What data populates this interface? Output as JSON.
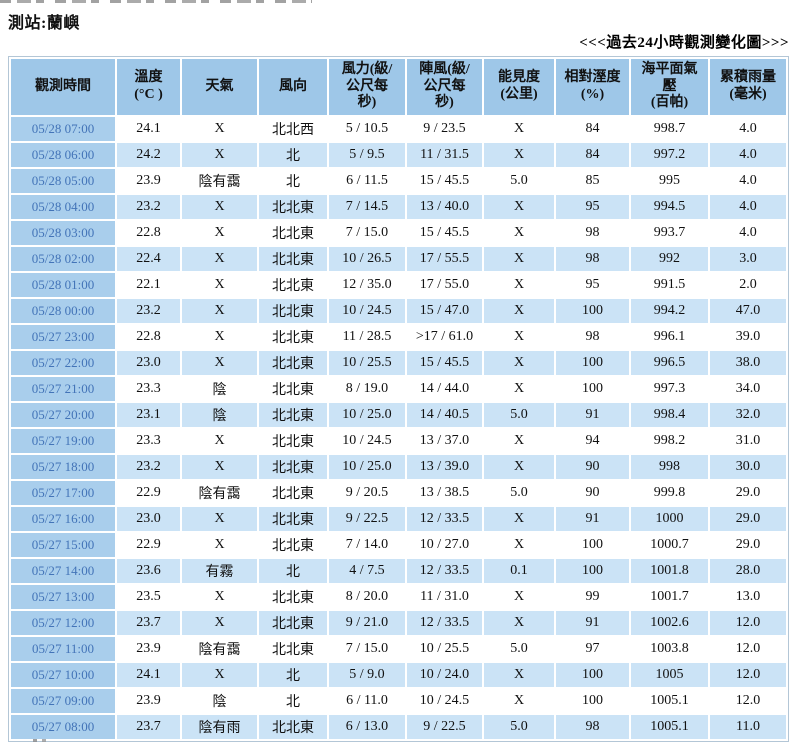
{
  "page": {
    "station_label": "測站:蘭嶼",
    "chart_link_label": "<<<過去24小時觀測變化圖>>>"
  },
  "colors": {
    "header-bg": "#9ec7e8",
    "time-bg": "#a9ceec",
    "row-alt-bg": "#cbe3f6",
    "row-bg": "#ffffff",
    "time-text": "#4374b8",
    "body-text": "#111111",
    "table-border": "#b3c6d6"
  },
  "table": {
    "headers": [
      "觀測時間",
      "溫度\n(°C )",
      "天氣",
      "風向",
      "風力(級/\n公尺每\n秒)",
      "陣風(級/\n公尺每\n秒)",
      "能見度\n(公里)",
      "相對溼度\n(%)",
      "海平面氣\n壓\n(百帕)",
      "累積雨量\n(毫米)"
    ],
    "rows": [
      [
        "05/28 07:00",
        "24.1",
        "X",
        "北北西",
        "5 / 10.5",
        "9 / 23.5",
        "X",
        "84",
        "998.7",
        "4.0"
      ],
      [
        "05/28 06:00",
        "24.2",
        "X",
        "北",
        "5 / 9.5",
        "11 / 31.5",
        "X",
        "84",
        "997.2",
        "4.0"
      ],
      [
        "05/28 05:00",
        "23.9",
        "陰有靄",
        "北",
        "6 / 11.5",
        "15 / 45.5",
        "5.0",
        "85",
        "995",
        "4.0"
      ],
      [
        "05/28 04:00",
        "23.2",
        "X",
        "北北東",
        "7 / 14.5",
        "13 / 40.0",
        "X",
        "95",
        "994.5",
        "4.0"
      ],
      [
        "05/28 03:00",
        "22.8",
        "X",
        "北北東",
        "7 / 15.0",
        "15 / 45.5",
        "X",
        "98",
        "993.7",
        "4.0"
      ],
      [
        "05/28 02:00",
        "22.4",
        "X",
        "北北東",
        "10 / 26.5",
        "17 / 55.5",
        "X",
        "98",
        "992",
        "3.0"
      ],
      [
        "05/28 01:00",
        "22.1",
        "X",
        "北北東",
        "12 / 35.0",
        "17 / 55.0",
        "X",
        "95",
        "991.5",
        "2.0"
      ],
      [
        "05/28 00:00",
        "23.2",
        "X",
        "北北東",
        "10 / 24.5",
        "15 / 47.0",
        "X",
        "100",
        "994.2",
        "47.0"
      ],
      [
        "05/27 23:00",
        "22.8",
        "X",
        "北北東",
        "11 / 28.5",
        ">17 / 61.0",
        "X",
        "98",
        "996.1",
        "39.0"
      ],
      [
        "05/27 22:00",
        "23.0",
        "X",
        "北北東",
        "10 / 25.5",
        "15 / 45.5",
        "X",
        "100",
        "996.5",
        "38.0"
      ],
      [
        "05/27 21:00",
        "23.3",
        "陰",
        "北北東",
        "8 / 19.0",
        "14 / 44.0",
        "X",
        "100",
        "997.3",
        "34.0"
      ],
      [
        "05/27 20:00",
        "23.1",
        "陰",
        "北北東",
        "10 / 25.0",
        "14 / 40.5",
        "5.0",
        "91",
        "998.4",
        "32.0"
      ],
      [
        "05/27 19:00",
        "23.3",
        "X",
        "北北東",
        "10 / 24.5",
        "13 / 37.0",
        "X",
        "94",
        "998.2",
        "31.0"
      ],
      [
        "05/27 18:00",
        "23.2",
        "X",
        "北北東",
        "10 / 25.0",
        "13 / 39.0",
        "X",
        "90",
        "998",
        "30.0"
      ],
      [
        "05/27 17:00",
        "22.9",
        "陰有靄",
        "北北東",
        "9 / 20.5",
        "13 / 38.5",
        "5.0",
        "90",
        "999.8",
        "29.0"
      ],
      [
        "05/27 16:00",
        "23.0",
        "X",
        "北北東",
        "9 / 22.5",
        "12 / 33.5",
        "X",
        "91",
        "1000",
        "29.0"
      ],
      [
        "05/27 15:00",
        "22.9",
        "X",
        "北北東",
        "7 / 14.0",
        "10 / 27.0",
        "X",
        "100",
        "1000.7",
        "29.0"
      ],
      [
        "05/27 14:00",
        "23.6",
        "有霧",
        "北",
        "4 / 7.5",
        "12 / 33.5",
        "0.1",
        "100",
        "1001.8",
        "28.0"
      ],
      [
        "05/27 13:00",
        "23.5",
        "X",
        "北北東",
        "8 / 20.0",
        "11 / 31.0",
        "X",
        "99",
        "1001.7",
        "13.0"
      ],
      [
        "05/27 12:00",
        "23.7",
        "X",
        "北北東",
        "9 / 21.0",
        "12 / 33.5",
        "X",
        "91",
        "1002.6",
        "12.0"
      ],
      [
        "05/27 11:00",
        "23.9",
        "陰有靄",
        "北北東",
        "7 / 15.0",
        "10 / 25.5",
        "5.0",
        "97",
        "1003.8",
        "12.0"
      ],
      [
        "05/27 10:00",
        "24.1",
        "X",
        "北",
        "5 / 9.0",
        "10 / 24.0",
        "X",
        "100",
        "1005",
        "12.0"
      ],
      [
        "05/27 09:00",
        "23.9",
        "陰",
        "北",
        "6 / 11.0",
        "10 / 24.5",
        "X",
        "100",
        "1005.1",
        "12.0"
      ],
      [
        "05/27 08:00",
        "23.7",
        "陰有雨",
        "北北東",
        "6 / 13.0",
        "9 / 22.5",
        "5.0",
        "98",
        "1005.1",
        "11.0"
      ]
    ]
  }
}
